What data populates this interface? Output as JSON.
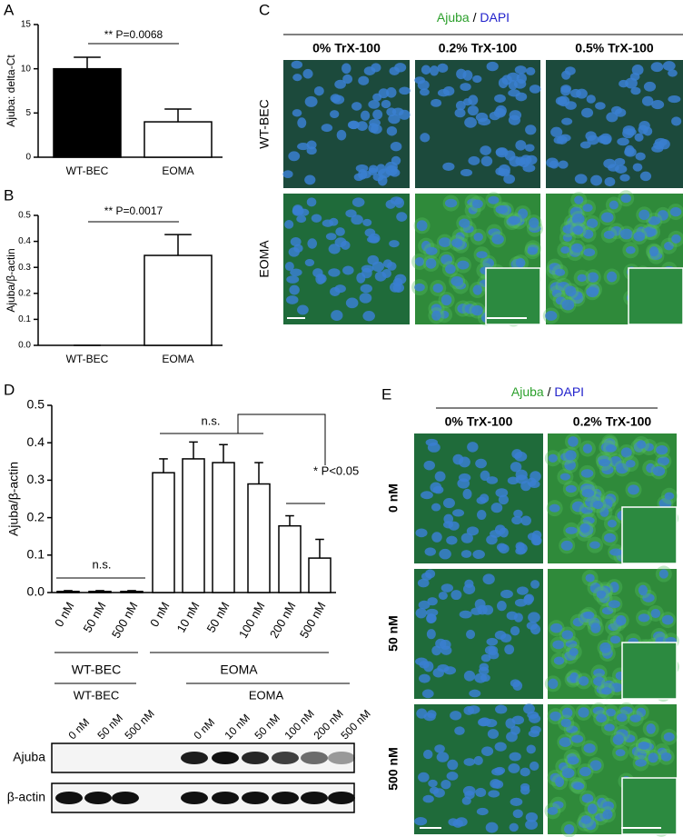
{
  "chart_data": [
    {
      "type": "bar",
      "panel": "A",
      "ylabel": "Ajuba: delta-Ct",
      "categories": [
        "WT-BEC",
        "EOMA"
      ],
      "values": [
        10.0,
        4.0
      ],
      "errors": [
        1.3,
        1.45
      ],
      "colors": [
        "#000000",
        "#ffffff"
      ],
      "edgecolor": "#000000",
      "ylim": [
        0,
        15
      ],
      "yticks": [
        0,
        5,
        10,
        15
      ],
      "annotations": [
        "** P=0.0068"
      ]
    },
    {
      "type": "bar",
      "panel": "B",
      "ylabel": "Ajuba/β-actin",
      "categories": [
        "WT-BEC",
        "EOMA"
      ],
      "values": [
        0,
        0.346
      ],
      "errors": [
        0,
        0.08
      ],
      "colors": [
        "#ffffff",
        "#ffffff"
      ],
      "edgecolor": "#000000",
      "ylim": [
        0,
        0.5
      ],
      "yticks": [
        {
          "value": 0,
          "label": "0.0"
        },
        0.1,
        0.2,
        0.3,
        0.4,
        0.5
      ],
      "annotations": [
        "** P=0.0017"
      ]
    },
    {
      "type": "bar",
      "panel": "D",
      "ylabel": "Ajuba/β-actin",
      "categories": [
        "0 nM",
        "50 nM",
        "500 nM",
        "0 nM",
        "10 nM",
        "50 nM",
        "100 nM",
        "200 nM",
        "500 nM"
      ],
      "values": [
        0.003,
        0.003,
        0.003,
        0.32,
        0.357,
        0.347,
        0.29,
        0.178,
        0.092
      ],
      "errors": [
        0.002,
        0.002,
        0.002,
        0.037,
        0.045,
        0.048,
        0.057,
        0.027,
        0.05
      ],
      "colors": [
        "#ffffff",
        "#ffffff",
        "#ffffff",
        "#ffffff",
        "#ffffff",
        "#ffffff",
        "#ffffff",
        "#ffffff",
        "#ffffff"
      ],
      "edgecolor": "#000000",
      "ylim": [
        0,
        0.5
      ],
      "yticks": [
        {
          "value": 0,
          "label": "0.0"
        },
        0.1,
        0.2,
        0.3,
        0.4,
        0.5
      ],
      "groups": [
        "WT-BEC",
        "EOMA"
      ],
      "annotations": [
        "n.s.",
        "n.s.",
        "* P<0.05"
      ]
    }
  ],
  "panel_c": {
    "letter": "C",
    "title": [
      "Ajuba",
      "/",
      "DAPI"
    ],
    "columns": [
      "0% TrX-100",
      "0.2% TrX-100",
      "0.5% TrX-100"
    ],
    "rows": [
      "WT-BEC",
      "EOMA"
    ]
  },
  "panel_e": {
    "letter": "E",
    "title": [
      "Ajuba",
      "/",
      "DAPI"
    ],
    "columns": [
      "0% TrX-100",
      "0.2% TrX-100"
    ],
    "rows": [
      "0 nM",
      "50 nM",
      "500 nM"
    ]
  },
  "blot": {
    "lanes": [
      "0 nM",
      "50 nM",
      "500 nM",
      "0 nM",
      "10 nM",
      "50 nM",
      "100 nM",
      "200 nM",
      "500 nM"
    ],
    "groups": [
      "WT-BEC",
      "EOMA"
    ],
    "rows": [
      "Ajuba",
      "β-actin"
    ]
  }
}
